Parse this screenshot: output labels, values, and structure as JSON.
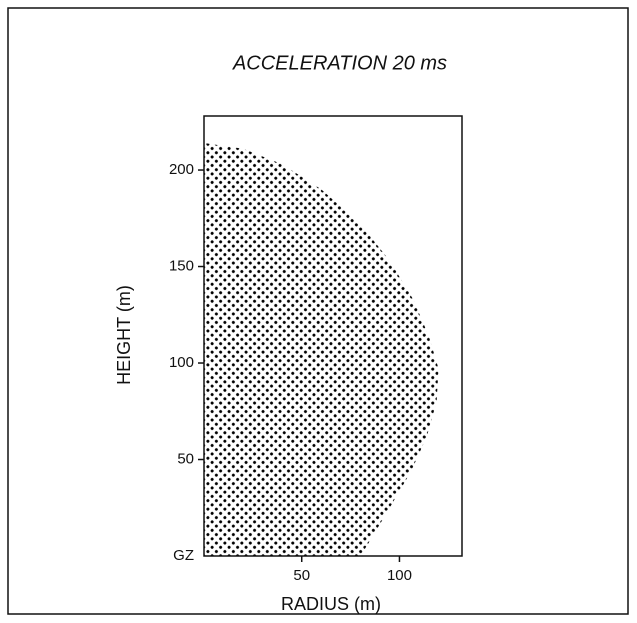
{
  "chart_data": {
    "type": "area",
    "title": "ACCELERATION   20 ms",
    "x_label": "RADIUS (m)",
    "y_label": "HEIGHT (m)",
    "series": [
      {
        "color": "#000000",
        "x": [
          0,
          20,
          40,
          60,
          80,
          95,
          107,
          115,
          120,
          119,
          114,
          106,
          95,
          85,
          80,
          0
        ],
        "values": [
          214,
          211,
          203,
          190,
          172,
          153,
          133,
          114,
          97,
          80,
          62,
          44,
          25,
          8,
          0,
          0
        ]
      }
    ],
    "xlim": [
      0,
      132
    ],
    "ylim": [
      0,
      228
    ],
    "xticks": [
      {
        "value": 0,
        "label": "GZ"
      },
      50,
      100
    ],
    "yticks": [
      50,
      100,
      150,
      200
    ]
  }
}
